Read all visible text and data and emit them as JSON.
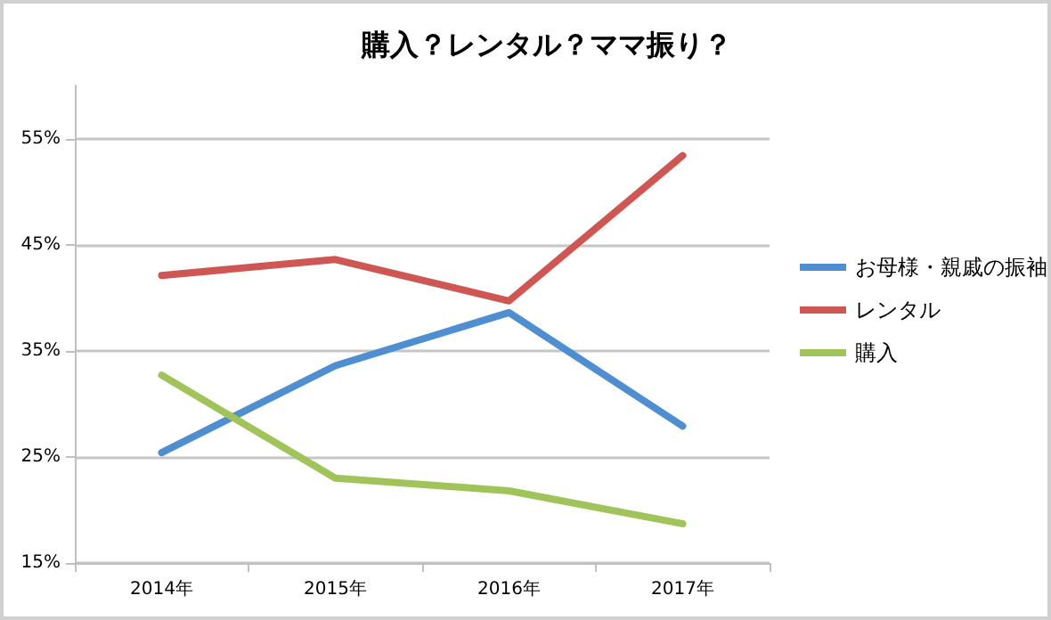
{
  "chart_data": {
    "type": "line",
    "title": "購入？レンタル？ママ振り？",
    "categories": [
      "2014年",
      "2015年",
      "2016年",
      "2017年"
    ],
    "series": [
      {
        "name": "お母様・親戚の振袖",
        "color": "#4f8ed0",
        "values": [
          25.4,
          33.6,
          38.6,
          27.9
        ]
      },
      {
        "name": "レンタル",
        "color": "#cf5753",
        "values": [
          42.1,
          43.6,
          39.7,
          53.4
        ]
      },
      {
        "name": "購入",
        "color": "#a0c45a",
        "values": [
          32.7,
          23.0,
          21.8,
          18.7
        ]
      }
    ],
    "ylim": [
      15,
      60
    ],
    "yticks": [
      {
        "value": 15,
        "label": "15%"
      },
      {
        "value": 25,
        "label": "25%"
      },
      {
        "value": 35,
        "label": "35%"
      },
      {
        "value": 45,
        "label": "45%"
      },
      {
        "value": 55,
        "label": "55%"
      }
    ],
    "grid": "y",
    "legend": "right",
    "marker": "none",
    "line_style": "solid"
  }
}
